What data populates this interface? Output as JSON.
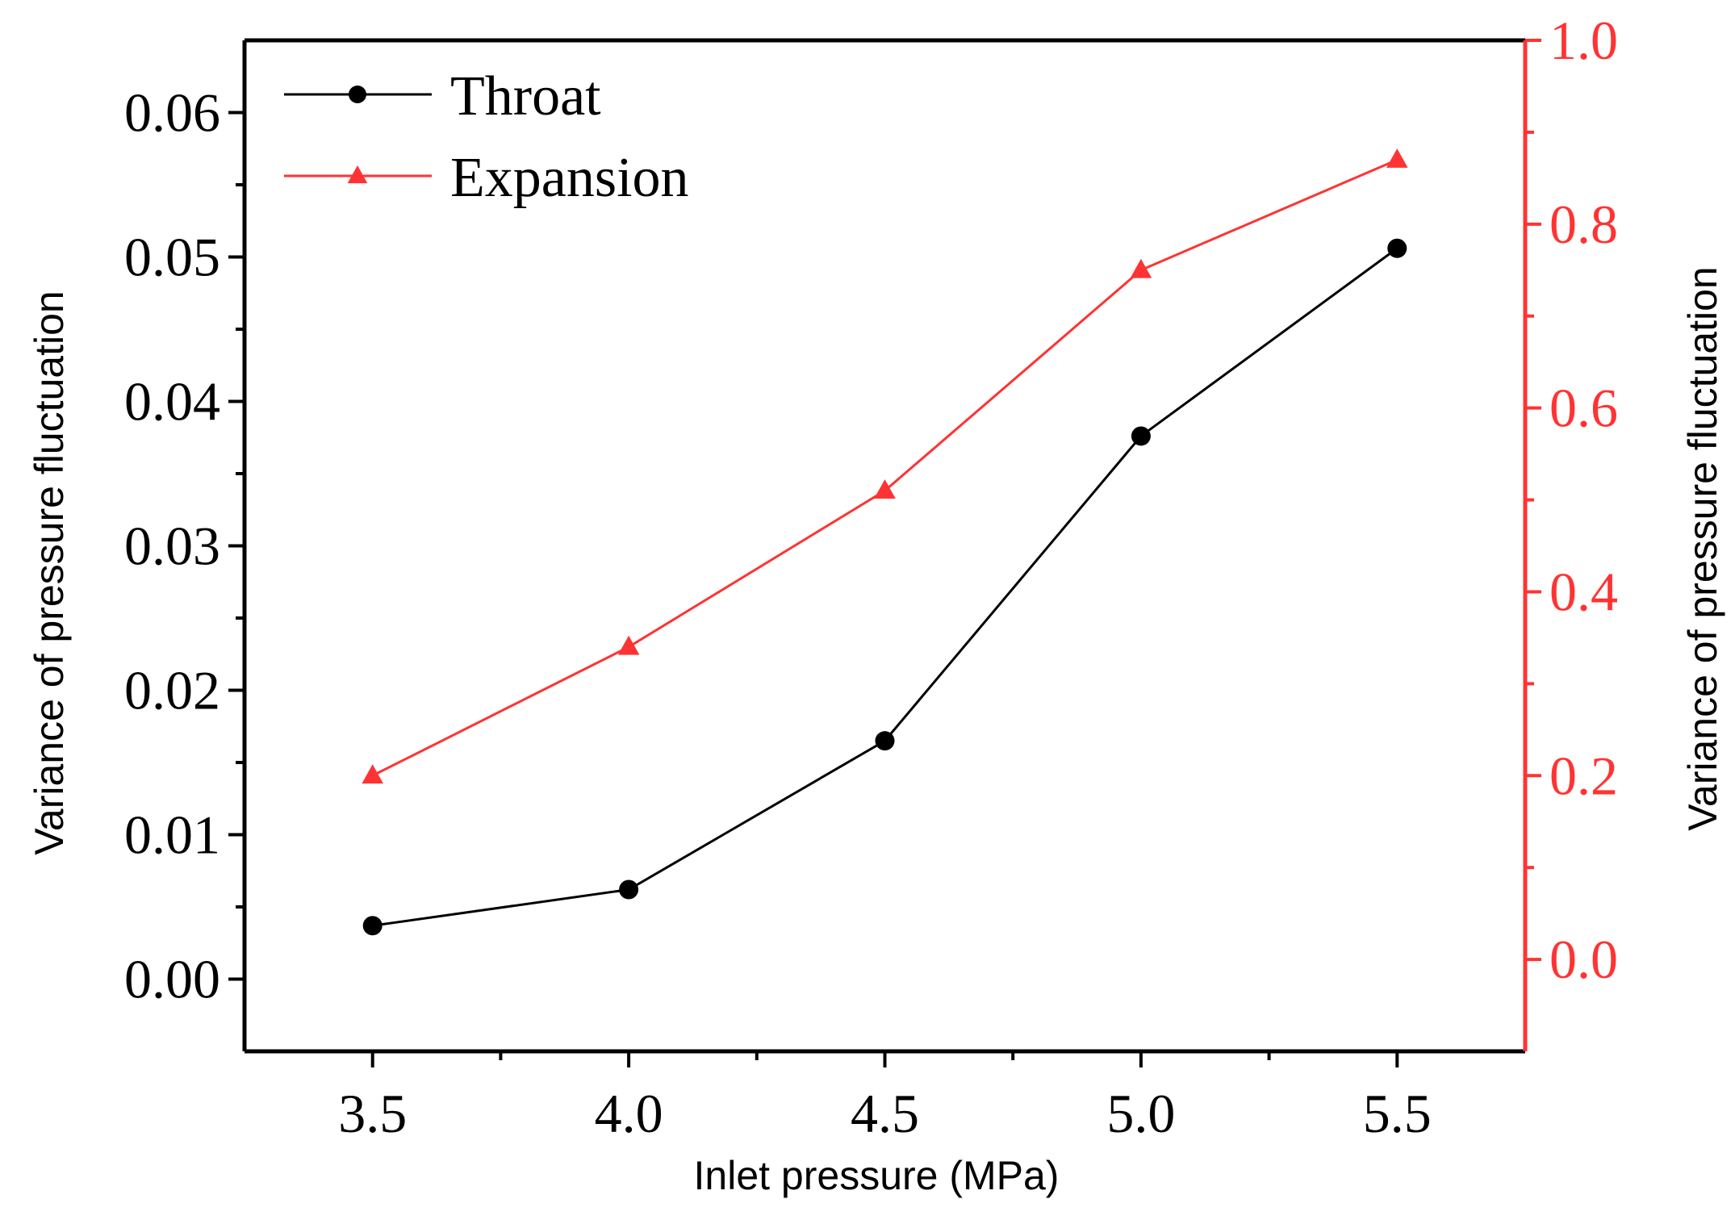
{
  "chart_data": {
    "type": "line",
    "xlabel": "Inlet pressure (MPa)",
    "ylabel_left": "Variance of pressure fluctuation",
    "ylabel_right": "Variance of pressure fluctuation",
    "x": [
      3.5,
      4.0,
      4.5,
      5.0,
      5.5
    ],
    "x_ticks": [
      "3.5",
      "4.0",
      "4.5",
      "5.0",
      "5.5"
    ],
    "xlim": [
      3.25,
      5.75
    ],
    "ylim_left": [
      -0.005,
      0.065
    ],
    "ylim_right": [
      -0.1,
      1.0
    ],
    "y_ticks_left": [
      "0.00",
      "0.01",
      "0.02",
      "0.03",
      "0.04",
      "0.05",
      "0.06"
    ],
    "y_ticks_right": [
      "0.0",
      "0.2",
      "0.4",
      "0.6",
      "0.8",
      "1.0"
    ],
    "legend_position": "top-left",
    "grid": false,
    "series": [
      {
        "name": "Throat",
        "axis": "left",
        "color": "#000000",
        "marker": "circle",
        "values": [
          0.0037,
          0.0062,
          0.0165,
          0.0376,
          0.0506
        ]
      },
      {
        "name": "Expansion",
        "axis": "right",
        "color": "#ff3333",
        "marker": "triangle",
        "values": [
          0.2,
          0.34,
          0.51,
          0.75,
          0.87
        ]
      }
    ]
  }
}
